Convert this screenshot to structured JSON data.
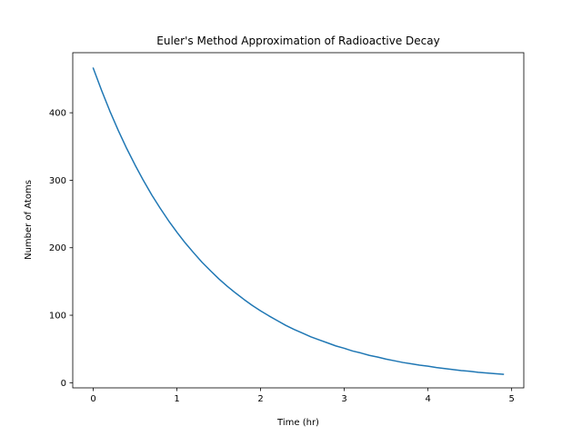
{
  "chart_data": {
    "type": "line",
    "title": "Euler's Method Approximation of Radioactive Decay",
    "xlabel": "Time (hr)",
    "ylabel": "Number of Atoms",
    "xlim": [
      -0.245,
      5.145
    ],
    "ylim": [
      -7.6,
      489
    ],
    "xticks": [
      0,
      1,
      2,
      3,
      4,
      5
    ],
    "yticks": [
      0,
      100,
      200,
      300,
      400
    ],
    "grid": false,
    "line_color": "#1f77b4",
    "series": [
      {
        "x": [
          0.0,
          0.1,
          0.2,
          0.3,
          0.4,
          0.5,
          0.6,
          0.7,
          0.8,
          0.9,
          1.0,
          1.1,
          1.2,
          1.3,
          1.4,
          1.5,
          1.6,
          1.7,
          1.8,
          1.9,
          2.0,
          2.1,
          2.2,
          2.3,
          2.4,
          2.5,
          2.6,
          2.7,
          2.8,
          2.9,
          3.0,
          3.1,
          3.2,
          3.3,
          3.4,
          3.5,
          3.6,
          3.7,
          3.8,
          3.9,
          4.0,
          4.1,
          4.2,
          4.3,
          4.4,
          4.5,
          4.6,
          4.7,
          4.8,
          4.9
        ],
        "values": [
          466.0,
          433.0,
          402.0,
          373.5,
          347.0,
          322.5,
          299.5,
          278.0,
          258.5,
          240.0,
          223.0,
          207.0,
          192.5,
          178.5,
          166.0,
          154.0,
          143.0,
          133.0,
          123.5,
          114.5,
          106.5,
          99.0,
          92.0,
          85.0,
          79.0,
          73.5,
          68.0,
          63.5,
          59.0,
          54.5,
          51.0,
          47.0,
          44.0,
          40.5,
          38.0,
          35.0,
          32.5,
          30.0,
          28.0,
          26.0,
          24.5,
          22.5,
          21.0,
          19.5,
          18.0,
          17.0,
          15.5,
          14.5,
          13.5,
          12.5
        ]
      }
    ]
  }
}
